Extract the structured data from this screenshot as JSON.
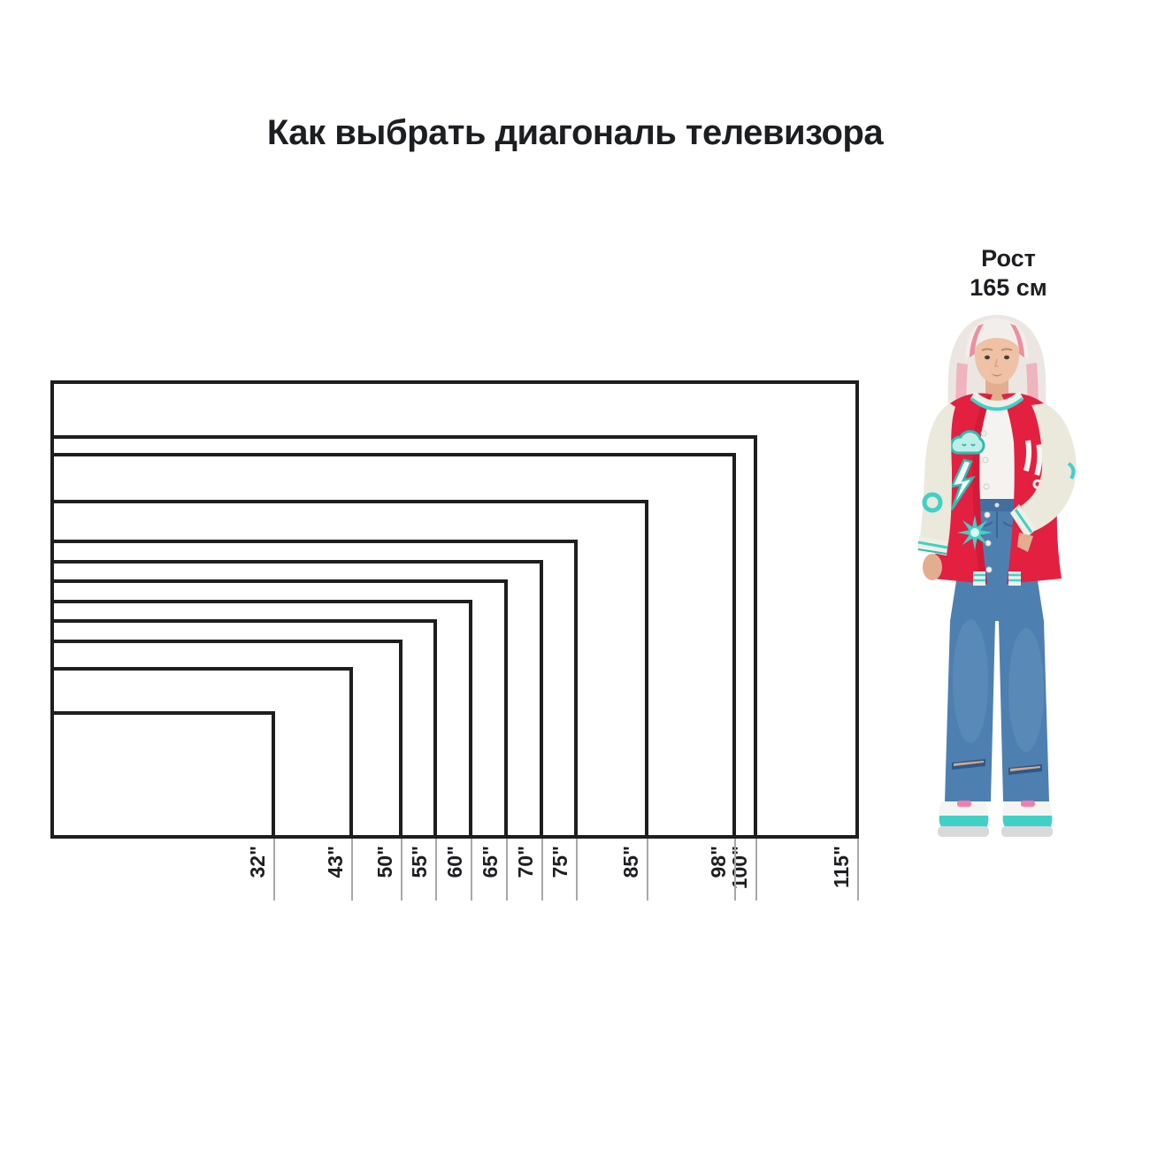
{
  "title": "Как выбрать диагональ телевизора",
  "person": {
    "label_line1": "Рост",
    "label_line2": "165 см",
    "height_cm": 165
  },
  "chart_data": {
    "type": "diagram",
    "subtype": "nested-rectangles-size-comparison",
    "description": "TV screen outlines (16:9) sharing one bottom-left corner, each labeled with its diagonal size; a person of height 165 cm stands on the same baseline for scale",
    "aspect_ratio": "16:9",
    "unit": "inch",
    "diagonals_in": [
      115,
      100,
      98,
      85,
      75,
      70,
      65,
      60,
      55,
      50,
      43,
      32
    ],
    "tick_labels": [
      "115\"",
      "100\"",
      "98\"",
      "85\"",
      "75\"",
      "70\"",
      "65\"",
      "60\"",
      "55\"",
      "50\"",
      "43\"",
      "32\""
    ],
    "legend_position": "none",
    "grid": false
  },
  "colors": {
    "ink": "#1d1e22",
    "outline": "#1e1e1e",
    "tick": "#a8a8a8",
    "jacket_red": "#e32040",
    "sleeve_cream": "#ebe8dc",
    "trim_teal": "#3fd1c7",
    "jeans_blue": "#4d80b0",
    "hair_white": "#ece7e3",
    "hair_pink": "#f0a3b2",
    "skin": "#efc2a6"
  }
}
